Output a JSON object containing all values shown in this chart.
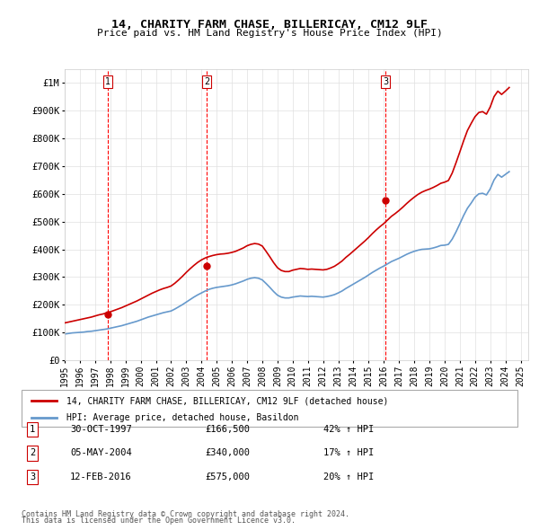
{
  "title": "14, CHARITY FARM CHASE, BILLERICAY, CM12 9LF",
  "subtitle": "Price paid vs. HM Land Registry's House Price Index (HPI)",
  "legend_label_red": "14, CHARITY FARM CHASE, BILLERICAY, CM12 9LF (detached house)",
  "legend_label_blue": "HPI: Average price, detached house, Basildon",
  "footer1": "Contains HM Land Registry data © Crown copyright and database right 2024.",
  "footer2": "This data is licensed under the Open Government Licence v3.0.",
  "transactions": [
    {
      "num": 1,
      "date": "30-OCT-1997",
      "price": "£166,500",
      "hpi": "42% ↑ HPI",
      "year": 1997.83
    },
    {
      "num": 2,
      "date": "05-MAY-2004",
      "price": "£340,000",
      "hpi": "17% ↑ HPI",
      "year": 2004.34
    },
    {
      "num": 3,
      "date": "12-FEB-2016",
      "price": "£575,000",
      "hpi": "20% ↑ HPI",
      "year": 2016.12
    }
  ],
  "xlim": [
    1995,
    2025.5
  ],
  "ylim": [
    0,
    1050000
  ],
  "yticks": [
    0,
    100000,
    200000,
    300000,
    400000,
    500000,
    600000,
    700000,
    800000,
    900000,
    1000000
  ],
  "ytick_labels": [
    "£0",
    "£100K",
    "£200K",
    "£300K",
    "£400K",
    "£500K",
    "£600K",
    "£700K",
    "£800K",
    "£900K",
    "£1M"
  ],
  "xticks": [
    1995,
    1996,
    1997,
    1998,
    1999,
    2000,
    2001,
    2002,
    2003,
    2004,
    2005,
    2006,
    2007,
    2008,
    2009,
    2010,
    2011,
    2012,
    2013,
    2014,
    2015,
    2016,
    2017,
    2018,
    2019,
    2020,
    2021,
    2022,
    2023,
    2024,
    2025
  ],
  "hpi_x": [
    1995.0,
    1995.25,
    1995.5,
    1995.75,
    1996.0,
    1996.25,
    1996.5,
    1996.75,
    1997.0,
    1997.25,
    1997.5,
    1997.75,
    1998.0,
    1998.25,
    1998.5,
    1998.75,
    1999.0,
    1999.25,
    1999.5,
    1999.75,
    2000.0,
    2000.25,
    2000.5,
    2000.75,
    2001.0,
    2001.25,
    2001.5,
    2001.75,
    2002.0,
    2002.25,
    2002.5,
    2002.75,
    2003.0,
    2003.25,
    2003.5,
    2003.75,
    2004.0,
    2004.25,
    2004.5,
    2004.75,
    2005.0,
    2005.25,
    2005.5,
    2005.75,
    2006.0,
    2006.25,
    2006.5,
    2006.75,
    2007.0,
    2007.25,
    2007.5,
    2007.75,
    2008.0,
    2008.25,
    2008.5,
    2008.75,
    2009.0,
    2009.25,
    2009.5,
    2009.75,
    2010.0,
    2010.25,
    2010.5,
    2010.75,
    2011.0,
    2011.25,
    2011.5,
    2011.75,
    2012.0,
    2012.25,
    2012.5,
    2012.75,
    2013.0,
    2013.25,
    2013.5,
    2013.75,
    2014.0,
    2014.25,
    2014.5,
    2014.75,
    2015.0,
    2015.25,
    2015.5,
    2015.75,
    2016.0,
    2016.25,
    2016.5,
    2016.75,
    2017.0,
    2017.25,
    2017.5,
    2017.75,
    2018.0,
    2018.25,
    2018.5,
    2018.75,
    2019.0,
    2019.25,
    2019.5,
    2019.75,
    2020.0,
    2020.25,
    2020.5,
    2020.75,
    2021.0,
    2021.25,
    2021.5,
    2021.75,
    2022.0,
    2022.25,
    2022.5,
    2022.75,
    2023.0,
    2023.25,
    2023.5,
    2023.75,
    2024.0,
    2024.25
  ],
  "hpi_y": [
    95000,
    97000,
    99000,
    100000,
    101000,
    102000,
    104000,
    105000,
    107000,
    109000,
    111000,
    113000,
    116000,
    119000,
    122000,
    125000,
    129000,
    133000,
    137000,
    141000,
    146000,
    151000,
    156000,
    160000,
    164000,
    168000,
    172000,
    175000,
    178000,
    185000,
    193000,
    201000,
    210000,
    219000,
    228000,
    236000,
    243000,
    250000,
    256000,
    260000,
    263000,
    265000,
    267000,
    269000,
    272000,
    276000,
    281000,
    286000,
    292000,
    296000,
    298000,
    296000,
    290000,
    277000,
    263000,
    248000,
    235000,
    228000,
    225000,
    225000,
    228000,
    230000,
    232000,
    231000,
    230000,
    231000,
    230000,
    229000,
    228000,
    230000,
    233000,
    237000,
    243000,
    250000,
    259000,
    267000,
    275000,
    283000,
    291000,
    299000,
    308000,
    317000,
    325000,
    333000,
    340000,
    348000,
    356000,
    362000,
    368000,
    375000,
    382000,
    388000,
    393000,
    397000,
    400000,
    401000,
    402000,
    405000,
    409000,
    414000,
    415000,
    418000,
    437000,
    463000,
    492000,
    522000,
    548000,
    567000,
    588000,
    600000,
    602000,
    596000,
    618000,
    650000,
    670000,
    660000,
    670000,
    680000
  ],
  "price_x": [
    1995.0,
    1995.25,
    1995.5,
    1995.75,
    1996.0,
    1996.25,
    1996.5,
    1996.75,
    1997.0,
    1997.25,
    1997.5,
    1997.75,
    1998.0,
    1998.25,
    1998.5,
    1998.75,
    1999.0,
    1999.25,
    1999.5,
    1999.75,
    2000.0,
    2000.25,
    2000.5,
    2000.75,
    2001.0,
    2001.25,
    2001.5,
    2001.75,
    2002.0,
    2002.25,
    2002.5,
    2002.75,
    2003.0,
    2003.25,
    2003.5,
    2003.75,
    2004.0,
    2004.25,
    2004.5,
    2004.75,
    2005.0,
    2005.25,
    2005.5,
    2005.75,
    2006.0,
    2006.25,
    2006.5,
    2006.75,
    2007.0,
    2007.25,
    2007.5,
    2007.75,
    2008.0,
    2008.25,
    2008.5,
    2008.75,
    2009.0,
    2009.25,
    2009.5,
    2009.75,
    2010.0,
    2010.25,
    2010.5,
    2010.75,
    2011.0,
    2011.25,
    2011.5,
    2011.75,
    2012.0,
    2012.25,
    2012.5,
    2012.75,
    2013.0,
    2013.25,
    2013.5,
    2013.75,
    2014.0,
    2014.25,
    2014.5,
    2014.75,
    2015.0,
    2015.25,
    2015.5,
    2015.75,
    2016.0,
    2016.25,
    2016.5,
    2016.75,
    2017.0,
    2017.25,
    2017.5,
    2017.75,
    2018.0,
    2018.25,
    2018.5,
    2018.75,
    2019.0,
    2019.25,
    2019.5,
    2019.75,
    2020.0,
    2020.25,
    2020.5,
    2020.75,
    2021.0,
    2021.25,
    2021.5,
    2021.75,
    2022.0,
    2022.25,
    2022.5,
    2022.75,
    2023.0,
    2023.25,
    2023.5,
    2023.75,
    2024.0,
    2024.25
  ],
  "price_y": [
    135000,
    138000,
    141000,
    144000,
    147000,
    150000,
    153000,
    156000,
    160000,
    164000,
    167000,
    171000,
    175000,
    180000,
    185000,
    190000,
    196000,
    202000,
    208000,
    214000,
    221000,
    228000,
    235000,
    242000,
    248000,
    254000,
    259000,
    263000,
    268000,
    278000,
    290000,
    303000,
    317000,
    330000,
    342000,
    353000,
    362000,
    369000,
    374000,
    378000,
    381000,
    383000,
    384000,
    386000,
    389000,
    393000,
    399000,
    405000,
    413000,
    418000,
    421000,
    419000,
    412000,
    393000,
    373000,
    352000,
    334000,
    324000,
    320000,
    320000,
    325000,
    328000,
    331000,
    330000,
    328000,
    329000,
    328000,
    327000,
    326000,
    328000,
    333000,
    339000,
    348000,
    358000,
    371000,
    382000,
    394000,
    406000,
    418000,
    430000,
    443000,
    457000,
    470000,
    482000,
    493000,
    506000,
    519000,
    529000,
    540000,
    552000,
    565000,
    577000,
    588000,
    598000,
    606000,
    612000,
    617000,
    623000,
    630000,
    638000,
    642000,
    648000,
    675000,
    712000,
    751000,
    791000,
    828000,
    854000,
    878000,
    893000,
    896000,
    887000,
    913000,
    950000,
    970000,
    958000,
    970000,
    983000
  ],
  "vline_years": [
    1997.83,
    2004.34,
    2016.12
  ],
  "vline_labels": [
    "1",
    "2",
    "3"
  ],
  "sale_points_x": [
    1997.83,
    2004.34,
    2016.12
  ],
  "sale_points_y": [
    166500,
    340000,
    575000
  ],
  "bg_color": "#ffffff",
  "plot_bg_color": "#ffffff",
  "grid_color": "#e0e0e0",
  "red_color": "#cc0000",
  "blue_color": "#6699cc",
  "vline_color": "#ff0000"
}
